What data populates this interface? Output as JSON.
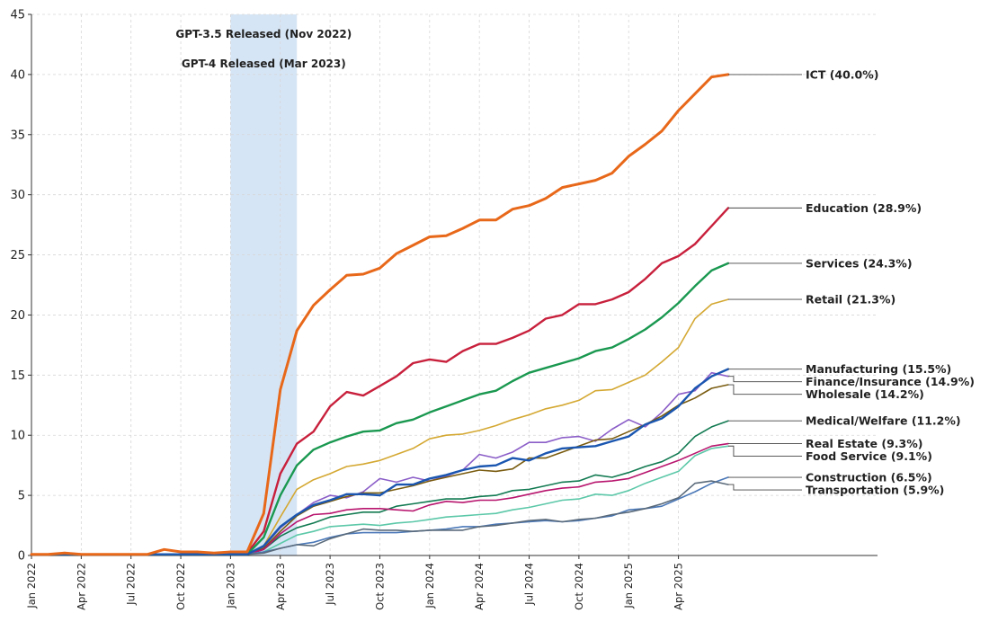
{
  "chart_data": {
    "type": "line",
    "x": [
      "2022-01",
      "2022-02",
      "2022-03",
      "2022-04",
      "2022-05",
      "2022-06",
      "2022-07",
      "2022-08",
      "2022-09",
      "2022-10",
      "2022-11",
      "2022-12",
      "2023-01",
      "2023-02",
      "2023-03",
      "2023-04",
      "2023-05",
      "2023-06",
      "2023-07",
      "2023-08",
      "2023-09",
      "2023-10",
      "2023-11",
      "2023-12",
      "2024-01",
      "2024-02",
      "2024-03",
      "2024-04",
      "2024-05",
      "2024-06",
      "2024-07",
      "2024-08",
      "2024-09",
      "2024-10",
      "2024-11",
      "2024-12",
      "2025-01",
      "2025-02",
      "2025-03",
      "2025-04",
      "2025-05",
      "2025-06",
      "2025-07"
    ],
    "x_ticks": [
      {
        "x": "2022-01",
        "label": "Jan 2022"
      },
      {
        "x": "2022-04",
        "label": "Apr 2022"
      },
      {
        "x": "2022-07",
        "label": "Jul 2022"
      },
      {
        "x": "2022-10",
        "label": "Oct 2022"
      },
      {
        "x": "2023-01",
        "label": "Jan 2023"
      },
      {
        "x": "2023-04",
        "label": "Apr 2023"
      },
      {
        "x": "2023-07",
        "label": "Jul 2023"
      },
      {
        "x": "2023-10",
        "label": "Oct 2023"
      },
      {
        "x": "2024-01",
        "label": "Jan 2024"
      },
      {
        "x": "2024-04",
        "label": "Apr 2024"
      },
      {
        "x": "2024-07",
        "label": "Jul 2024"
      },
      {
        "x": "2024-10",
        "label": "Oct 2024"
      },
      {
        "x": "2025-01",
        "label": "Jan 2025"
      },
      {
        "x": "2025-04",
        "label": "Apr 2025"
      }
    ],
    "xlim": [
      "2022-01",
      "2026-04"
    ],
    "ylim": [
      0,
      45
    ],
    "y_ticks": [
      0,
      5,
      10,
      15,
      20,
      25,
      30,
      35,
      40,
      45
    ],
    "grid": true,
    "shaded_region": {
      "from": "2023-01",
      "to": "2023-05"
    },
    "annotations": [
      {
        "text": "GPT-3.5 Released (Nov 2022)"
      },
      {
        "text": "GPT-4 Released (Mar 2023)"
      }
    ],
    "series": [
      {
        "name": "ICT",
        "end_label": "ICT (40.0%)",
        "color": "#e8681a",
        "width": 3,
        "values": [
          0.1,
          0.1,
          0.2,
          0.1,
          0.1,
          0.1,
          0.1,
          0.1,
          0.5,
          0.3,
          0.3,
          0.2,
          0.3,
          0.3,
          3.5,
          13.8,
          18.7,
          20.8,
          22.1,
          23.3,
          23.4,
          23.9,
          25.1,
          25.8,
          26.5,
          26.6,
          27.2,
          27.9,
          27.9,
          28.8,
          29.1,
          29.7,
          30.6,
          30.9,
          31.2,
          31.8,
          33.2,
          34.2,
          35.3,
          37.0,
          38.4,
          39.8,
          40.0
        ]
      },
      {
        "name": "Education",
        "end_label": "Education (28.9%)",
        "color": "#c8203c",
        "width": 2.4,
        "values": [
          0.1,
          0.1,
          0.2,
          0.1,
          0.1,
          0.1,
          0.1,
          0.1,
          0.1,
          0.1,
          0.2,
          0.2,
          0.1,
          0.2,
          2.0,
          6.8,
          9.3,
          10.3,
          12.4,
          13.6,
          13.3,
          14.1,
          14.9,
          16.0,
          16.3,
          16.1,
          17.0,
          17.6,
          17.6,
          18.1,
          18.7,
          19.7,
          20.0,
          20.9,
          20.9,
          21.3,
          21.9,
          23.0,
          24.3,
          24.9,
          25.9,
          27.4,
          28.9
        ]
      },
      {
        "name": "Services",
        "end_label": "Services (24.3%)",
        "color": "#1a9850",
        "width": 2.4,
        "values": [
          0.1,
          0.1,
          0.1,
          0.1,
          0.1,
          0.1,
          0.1,
          0.1,
          0.1,
          0.1,
          0.1,
          0.1,
          0.1,
          0.1,
          1.5,
          5.0,
          7.5,
          8.8,
          9.4,
          9.9,
          10.3,
          10.4,
          11.0,
          11.3,
          11.9,
          12.4,
          12.9,
          13.4,
          13.7,
          14.5,
          15.2,
          15.6,
          16.0,
          16.4,
          17.0,
          17.3,
          18.0,
          18.8,
          19.8,
          21.0,
          22.4,
          23.7,
          24.3
        ]
      },
      {
        "name": "Retail",
        "end_label": "Retail (21.3%)",
        "color": "#d4a832",
        "width": 1.6,
        "values": [
          0.1,
          0.1,
          0.1,
          0.1,
          0.1,
          0.1,
          0.1,
          0.1,
          0.1,
          0.1,
          0.1,
          0.1,
          0.1,
          0.1,
          0.8,
          3.2,
          5.5,
          6.3,
          6.8,
          7.4,
          7.6,
          7.9,
          8.4,
          8.9,
          9.7,
          10.0,
          10.1,
          10.4,
          10.8,
          11.3,
          11.7,
          12.2,
          12.5,
          12.9,
          13.7,
          13.8,
          14.4,
          15.0,
          16.1,
          17.3,
          19.7,
          20.9,
          21.3
        ]
      },
      {
        "name": "Manufacturing",
        "end_label": "Manufacturing (15.5%)",
        "color": "#1a56b0",
        "width": 2.4,
        "values": [
          0.1,
          0.1,
          0.1,
          0.1,
          0.1,
          0.1,
          0.1,
          0.1,
          0.1,
          0.1,
          0.1,
          0.1,
          0.1,
          0.1,
          0.8,
          2.4,
          3.4,
          4.2,
          4.6,
          5.1,
          5.1,
          5.0,
          5.9,
          5.9,
          6.4,
          6.7,
          7.1,
          7.4,
          7.5,
          8.1,
          7.9,
          8.5,
          8.9,
          9.0,
          9.1,
          9.5,
          9.9,
          10.9,
          11.4,
          12.4,
          13.9,
          14.9,
          15.5
        ]
      },
      {
        "name": "Finance/Insurance",
        "end_label": "Finance/Insurance (14.9%)",
        "color": "#8b5ec8",
        "width": 1.6,
        "values": [
          0.1,
          0.1,
          0.1,
          0.1,
          0.1,
          0.1,
          0.1,
          0.1,
          0.1,
          0.1,
          0.1,
          0.1,
          0.1,
          0.1,
          0.7,
          2.3,
          3.4,
          4.4,
          5.0,
          4.8,
          5.3,
          6.4,
          6.1,
          6.5,
          6.2,
          6.6,
          7.1,
          8.4,
          8.1,
          8.6,
          9.4,
          9.4,
          9.8,
          9.9,
          9.5,
          10.5,
          11.3,
          10.7,
          11.9,
          13.4,
          13.7,
          15.2,
          14.9
        ]
      },
      {
        "name": "Wholesale",
        "end_label": "Wholesale (14.2%)",
        "color": "#7a5c10",
        "width": 1.6,
        "values": [
          0.1,
          0.1,
          0.1,
          0.1,
          0.1,
          0.1,
          0.1,
          0.1,
          0.1,
          0.1,
          0.1,
          0.1,
          0.1,
          0.1,
          0.6,
          2.0,
          3.3,
          4.1,
          4.5,
          4.9,
          5.2,
          5.2,
          5.5,
          5.8,
          6.2,
          6.5,
          6.8,
          7.1,
          7.0,
          7.2,
          8.1,
          8.1,
          8.6,
          9.1,
          9.6,
          9.7,
          10.3,
          10.9,
          11.6,
          12.5,
          13.1,
          13.9,
          14.2
        ]
      },
      {
        "name": "Medical/Welfare",
        "end_label": "Medical/Welfare (11.2%)",
        "color": "#127a52",
        "width": 1.6,
        "values": [
          0.1,
          0.1,
          0.1,
          0.1,
          0.1,
          0.1,
          0.1,
          0.1,
          0.1,
          0.1,
          0.1,
          0.1,
          0.1,
          0.1,
          0.5,
          1.6,
          2.3,
          2.7,
          3.2,
          3.4,
          3.6,
          3.6,
          4.1,
          4.3,
          4.5,
          4.7,
          4.7,
          4.9,
          5.0,
          5.4,
          5.5,
          5.8,
          6.1,
          6.2,
          6.7,
          6.5,
          6.9,
          7.4,
          7.8,
          8.5,
          9.9,
          10.7,
          11.2
        ]
      },
      {
        "name": "Real Estate",
        "end_label": "Real Estate (9.3%)",
        "color": "#b8156e",
        "width": 1.6,
        "values": [
          0.1,
          0.1,
          0.1,
          0.1,
          0.1,
          0.1,
          0.1,
          0.1,
          0.1,
          0.1,
          0.1,
          0.1,
          0.1,
          0.1,
          0.5,
          1.8,
          2.8,
          3.4,
          3.5,
          3.8,
          3.9,
          3.9,
          3.8,
          3.7,
          4.2,
          4.5,
          4.4,
          4.6,
          4.6,
          4.8,
          5.1,
          5.4,
          5.6,
          5.7,
          6.1,
          6.2,
          6.4,
          6.9,
          7.4,
          7.9,
          8.5,
          9.1,
          9.3
        ]
      },
      {
        "name": "Food Service",
        "end_label": "Food Service (9.1%)",
        "color": "#5cc8a8",
        "width": 1.6,
        "values": [
          0.1,
          0.1,
          0.1,
          0.1,
          0.1,
          0.1,
          0.1,
          0.1,
          0.1,
          0.1,
          0.1,
          0.1,
          0.1,
          0.1,
          0.3,
          1.0,
          1.7,
          2.0,
          2.4,
          2.5,
          2.6,
          2.5,
          2.7,
          2.8,
          3.0,
          3.2,
          3.3,
          3.4,
          3.5,
          3.8,
          4.0,
          4.3,
          4.6,
          4.7,
          5.1,
          5.0,
          5.4,
          6.0,
          6.5,
          7.0,
          8.3,
          8.9,
          9.1
        ]
      },
      {
        "name": "Construction",
        "end_label": "Construction (6.5%)",
        "color": "#4a78b8",
        "width": 1.6,
        "values": [
          0.1,
          0.1,
          0.1,
          0.1,
          0.1,
          0.1,
          0.1,
          0.1,
          0.1,
          0.1,
          0.1,
          0.1,
          0.1,
          0.1,
          0.3,
          0.6,
          0.9,
          1.1,
          1.5,
          1.8,
          1.9,
          1.9,
          1.9,
          2.0,
          2.1,
          2.2,
          2.4,
          2.4,
          2.6,
          2.7,
          2.8,
          2.9,
          2.8,
          2.9,
          3.1,
          3.3,
          3.8,
          3.9,
          4.1,
          4.7,
          5.3,
          6.0,
          6.5
        ]
      },
      {
        "name": "Transportation",
        "end_label": "Transportation (5.9%)",
        "color": "#5a6a7a",
        "width": 1.6,
        "values": [
          0.1,
          0.1,
          0.1,
          0.1,
          0.1,
          0.1,
          0.1,
          0.1,
          0.1,
          0.1,
          0.1,
          0.1,
          0.1,
          0.1,
          0.2,
          0.6,
          0.9,
          0.8,
          1.4,
          1.8,
          2.2,
          2.1,
          2.1,
          2.0,
          2.1,
          2.1,
          2.1,
          2.4,
          2.5,
          2.7,
          2.9,
          3.0,
          2.8,
          3.0,
          3.1,
          3.4,
          3.6,
          3.9,
          4.3,
          4.8,
          6.0,
          6.2,
          5.9
        ]
      }
    ]
  }
}
